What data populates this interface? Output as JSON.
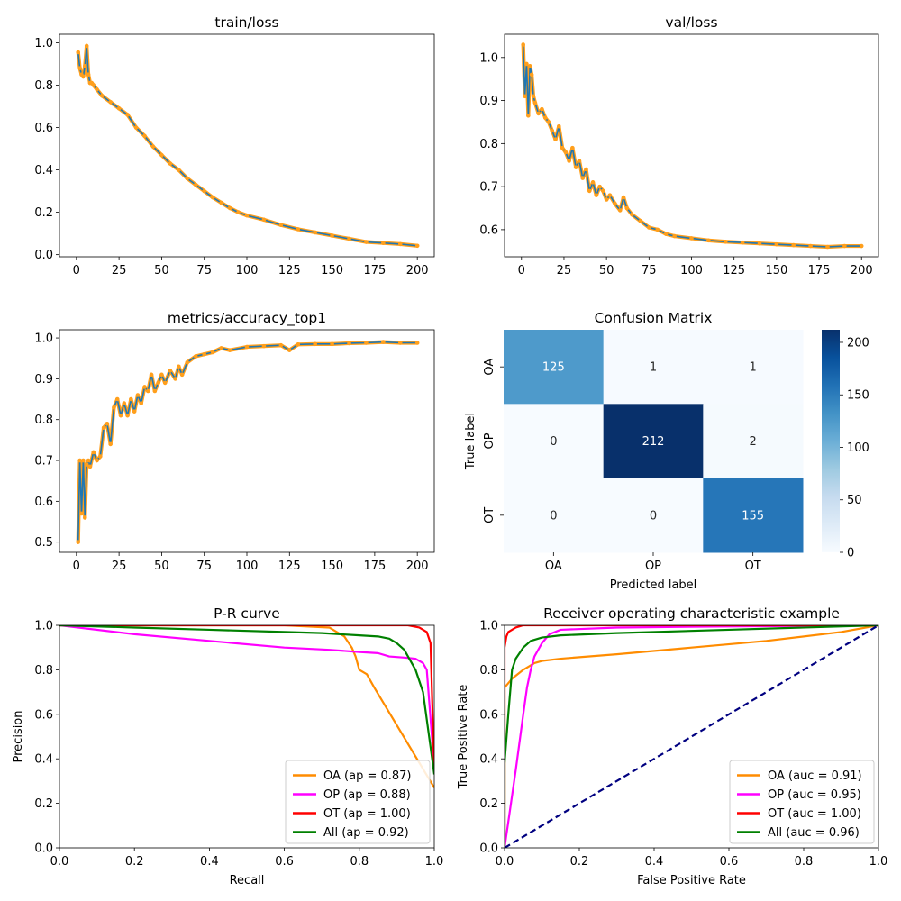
{
  "chart_data": [
    {
      "id": "train_loss",
      "type": "line",
      "title": "train/loss",
      "xlabel": "",
      "ylabel": "",
      "xlim": [
        -9.95,
        209.95
      ],
      "ylim": [
        -0.01,
        1.04
      ],
      "xticks": [
        0,
        25,
        50,
        75,
        100,
        125,
        150,
        175,
        200
      ],
      "yticks": [
        0.0,
        0.2,
        0.4,
        0.6,
        0.8,
        1.0
      ],
      "ytick_decimals": 1,
      "line_color": "#1f77b4",
      "marker_color": "#ff9f1c",
      "series": [
        {
          "x": [
            1,
            2,
            3,
            4,
            5,
            6,
            7,
            8,
            9,
            10,
            12,
            15,
            20,
            25,
            30,
            35,
            40,
            45,
            50,
            55,
            60,
            65,
            70,
            75,
            80,
            85,
            90,
            95,
            100,
            110,
            120,
            130,
            140,
            150,
            160,
            170,
            180,
            190,
            200
          ],
          "y": [
            0.955,
            0.88,
            0.85,
            0.84,
            0.89,
            0.985,
            0.85,
            0.81,
            0.81,
            0.8,
            0.78,
            0.75,
            0.72,
            0.69,
            0.66,
            0.6,
            0.56,
            0.51,
            0.47,
            0.43,
            0.4,
            0.36,
            0.33,
            0.3,
            0.27,
            0.245,
            0.22,
            0.2,
            0.185,
            0.165,
            0.14,
            0.12,
            0.105,
            0.09,
            0.075,
            0.06,
            0.055,
            0.05,
            0.042
          ]
        }
      ]
    },
    {
      "id": "val_loss",
      "type": "line",
      "title": "val/loss",
      "xlabel": "",
      "ylabel": "",
      "xlim": [
        -9.95,
        209.95
      ],
      "ylim": [
        0.537,
        1.054
      ],
      "xticks": [
        0,
        25,
        50,
        75,
        100,
        125,
        150,
        175,
        200
      ],
      "yticks": [
        0.6,
        0.7,
        0.8,
        0.9,
        1.0
      ],
      "ytick_decimals": 1,
      "line_color": "#1f77b4",
      "marker_color": "#ff9f1c",
      "series": [
        {
          "x": [
            1,
            2,
            3,
            4,
            5,
            6,
            7,
            8,
            10,
            12,
            14,
            16,
            18,
            20,
            22,
            24,
            26,
            28,
            30,
            32,
            34,
            36,
            38,
            40,
            42,
            44,
            46,
            48,
            50,
            52,
            55,
            58,
            60,
            62,
            65,
            70,
            75,
            80,
            85,
            90,
            100,
            110,
            120,
            130,
            140,
            150,
            160,
            170,
            180,
            190,
            200
          ],
          "y": [
            1.03,
            0.91,
            0.985,
            0.865,
            0.98,
            0.96,
            0.91,
            0.895,
            0.87,
            0.88,
            0.86,
            0.85,
            0.83,
            0.81,
            0.84,
            0.79,
            0.78,
            0.76,
            0.79,
            0.745,
            0.76,
            0.72,
            0.74,
            0.69,
            0.71,
            0.68,
            0.7,
            0.69,
            0.67,
            0.68,
            0.66,
            0.645,
            0.675,
            0.65,
            0.635,
            0.62,
            0.605,
            0.6,
            0.59,
            0.585,
            0.58,
            0.575,
            0.572,
            0.57,
            0.568,
            0.566,
            0.564,
            0.562,
            0.56,
            0.562,
            0.562
          ]
        }
      ]
    },
    {
      "id": "accuracy_top1",
      "type": "line",
      "title": "metrics/accuracy_top1",
      "xlabel": "",
      "ylabel": "",
      "xlim": [
        -9.95,
        209.95
      ],
      "ylim": [
        0.475,
        1.02
      ],
      "xticks": [
        0,
        25,
        50,
        75,
        100,
        125,
        150,
        175,
        200
      ],
      "yticks": [
        0.5,
        0.6,
        0.7,
        0.8,
        0.9,
        1.0
      ],
      "ytick_decimals": 1,
      "line_color": "#1f77b4",
      "marker_color": "#ff9f1c",
      "series": [
        {
          "x": [
            1,
            2,
            3,
            4,
            5,
            6,
            7,
            8,
            10,
            12,
            14,
            16,
            18,
            20,
            22,
            24,
            26,
            28,
            30,
            32,
            34,
            36,
            38,
            40,
            42,
            44,
            46,
            48,
            50,
            52,
            55,
            58,
            60,
            62,
            65,
            70,
            75,
            80,
            85,
            90,
            100,
            110,
            120,
            125,
            130,
            140,
            150,
            160,
            170,
            180,
            190,
            200
          ],
          "y": [
            0.5,
            0.7,
            0.57,
            0.7,
            0.56,
            0.69,
            0.7,
            0.685,
            0.72,
            0.7,
            0.71,
            0.78,
            0.79,
            0.74,
            0.83,
            0.85,
            0.81,
            0.84,
            0.81,
            0.85,
            0.82,
            0.86,
            0.84,
            0.88,
            0.87,
            0.91,
            0.87,
            0.89,
            0.91,
            0.89,
            0.92,
            0.9,
            0.93,
            0.91,
            0.94,
            0.955,
            0.96,
            0.965,
            0.975,
            0.97,
            0.978,
            0.98,
            0.982,
            0.97,
            0.984,
            0.985,
            0.985,
            0.987,
            0.988,
            0.99,
            0.988,
            0.988
          ]
        }
      ]
    },
    {
      "id": "confusion",
      "type": "heatmap",
      "title": "Confusion Matrix",
      "xlabel": "Predicted label",
      "ylabel": "True label",
      "x_categories": [
        "OA",
        "OP",
        "OT"
      ],
      "y_categories": [
        "OA",
        "OP",
        "OT"
      ],
      "values": [
        [
          125,
          1,
          1
        ],
        [
          0,
          212,
          2
        ],
        [
          0,
          0,
          155
        ]
      ],
      "vmin": 0,
      "vmax": 212,
      "colorbar_ticks": [
        0,
        50,
        100,
        150,
        200
      ],
      "colormap": "Blues",
      "colormap_low": "#f7fbff",
      "colormap_high": "#08306b"
    },
    {
      "id": "pr_curve",
      "type": "line",
      "title": "P-R curve",
      "xlabel": "Recall",
      "ylabel": "Precision",
      "xlim": [
        0,
        1
      ],
      "ylim": [
        0,
        1
      ],
      "xticks": [
        0.0,
        0.2,
        0.4,
        0.6,
        0.8,
        1.0
      ],
      "yticks": [
        0.0,
        0.2,
        0.4,
        0.6,
        0.8,
        1.0
      ],
      "ytick_decimals": 1,
      "legend_position": "lower-right",
      "series": [
        {
          "name": "OA (ap = 0.87)",
          "color": "#ff8c00",
          "x": [
            0,
            0.2,
            0.4,
            0.6,
            0.72,
            0.74,
            0.76,
            0.78,
            0.79,
            0.8,
            0.82,
            0.84,
            1.0
          ],
          "y": [
            1,
            1,
            1,
            1,
            0.99,
            0.97,
            0.95,
            0.9,
            0.86,
            0.8,
            0.78,
            0.72,
            0.27
          ]
        },
        {
          "name": "OP (ap = 0.88)",
          "color": "#ff00ff",
          "x": [
            0,
            0.2,
            0.4,
            0.6,
            0.72,
            0.8,
            0.85,
            0.88,
            0.92,
            0.95,
            0.97,
            0.98,
            1.0
          ],
          "y": [
            1,
            0.96,
            0.93,
            0.9,
            0.89,
            0.88,
            0.875,
            0.86,
            0.855,
            0.85,
            0.83,
            0.8,
            0.36
          ]
        },
        {
          "name": "OT (ap = 1.00)",
          "color": "#ff0000",
          "x": [
            0,
            0.5,
            0.85,
            0.93,
            0.96,
            0.98,
            0.99,
            1.0
          ],
          "y": [
            1,
            1,
            1,
            1,
            0.99,
            0.97,
            0.92,
            0.34
          ]
        },
        {
          "name": "All (ap = 0.92)",
          "color": "#008000",
          "x": [
            0,
            0.2,
            0.4,
            0.6,
            0.7,
            0.8,
            0.85,
            0.88,
            0.9,
            0.92,
            0.95,
            0.97,
            1.0
          ],
          "y": [
            1,
            0.99,
            0.98,
            0.97,
            0.965,
            0.955,
            0.95,
            0.94,
            0.92,
            0.89,
            0.8,
            0.7,
            0.33
          ]
        }
      ]
    },
    {
      "id": "roc_curve",
      "type": "line",
      "title": "Receiver operating characteristic example",
      "xlabel": "False Positive Rate",
      "ylabel": "True Positive Rate",
      "xlim": [
        0,
        1
      ],
      "ylim": [
        0,
        1
      ],
      "xticks": [
        0.0,
        0.2,
        0.4,
        0.6,
        0.8,
        1.0
      ],
      "yticks": [
        0.0,
        0.2,
        0.4,
        0.6,
        0.8,
        1.0
      ],
      "ytick_decimals": 1,
      "legend_position": "lower-right",
      "series": [
        {
          "name": "OA (auc = 0.91)",
          "color": "#ff8c00",
          "x": [
            0,
            0.0,
            0.02,
            0.05,
            0.08,
            0.1,
            0.15,
            0.3,
            0.5,
            0.7,
            0.9,
            1.0
          ],
          "y": [
            0,
            0.72,
            0.76,
            0.8,
            0.83,
            0.84,
            0.85,
            0.87,
            0.9,
            0.93,
            0.97,
            1.0
          ]
        },
        {
          "name": "OP (auc = 0.95)",
          "color": "#ff00ff",
          "x": [
            0,
            0.03,
            0.05,
            0.06,
            0.07,
            0.08,
            0.1,
            0.12,
            0.15,
            0.3,
            0.6,
            1.0
          ],
          "y": [
            0,
            0.35,
            0.6,
            0.72,
            0.8,
            0.86,
            0.92,
            0.96,
            0.98,
            0.99,
            0.995,
            1.0
          ]
        },
        {
          "name": "OT (auc = 1.00)",
          "color": "#ff0000",
          "x": [
            0,
            0.0,
            0.005,
            0.01,
            0.02,
            0.03,
            0.05,
            0.1,
            0.3,
            1.0
          ],
          "y": [
            0,
            0.9,
            0.95,
            0.97,
            0.98,
            0.99,
            1.0,
            1.0,
            1.0,
            1.0
          ]
        },
        {
          "name": "All (auc = 0.96)",
          "color": "#008000",
          "x": [
            0,
            0.0,
            0.01,
            0.02,
            0.03,
            0.05,
            0.07,
            0.1,
            0.15,
            0.3,
            0.6,
            1.0
          ],
          "y": [
            0,
            0.38,
            0.6,
            0.8,
            0.85,
            0.9,
            0.93,
            0.945,
            0.955,
            0.965,
            0.98,
            1.0
          ]
        },
        {
          "name": "",
          "color": "#000080",
          "dashed": true,
          "x": [
            0,
            1
          ],
          "y": [
            0,
            1
          ]
        }
      ]
    }
  ]
}
